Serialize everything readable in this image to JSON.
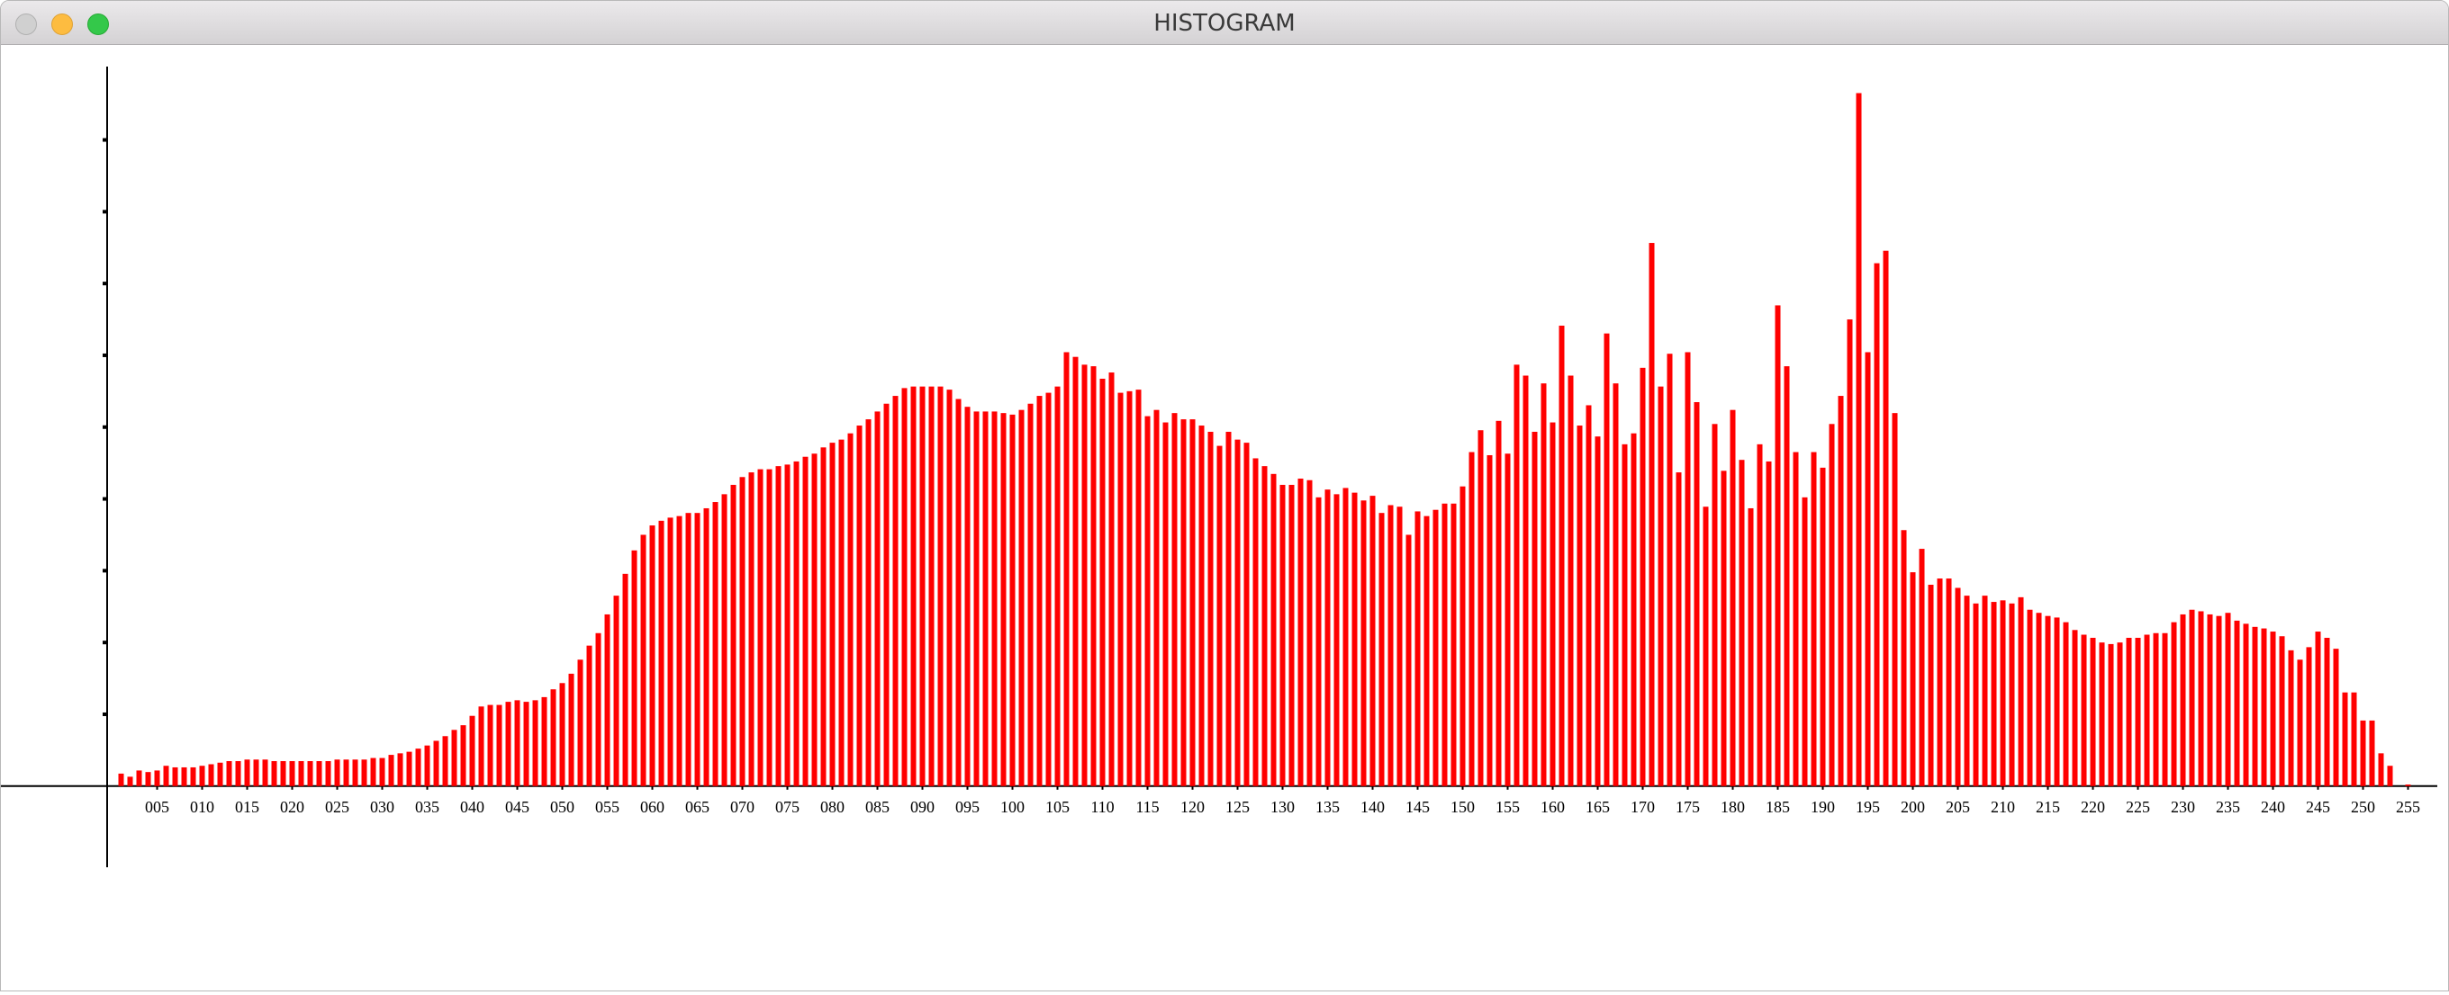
{
  "window": {
    "title": "HISTOGRAM"
  },
  "chart_data": {
    "type": "bar",
    "color": "#ff0000",
    "categories": [
      null,
      null,
      null,
      null,
      null,
      "005",
      null,
      null,
      null,
      null,
      "010",
      null,
      null,
      null,
      null,
      "015",
      null,
      null,
      null,
      null,
      "020",
      null,
      null,
      null,
      null,
      "025",
      null,
      null,
      null,
      null,
      "030",
      null,
      null,
      null,
      null,
      "035",
      null,
      null,
      null,
      null,
      "040",
      null,
      null,
      null,
      null,
      "045",
      null,
      null,
      null,
      null,
      "050",
      null,
      null,
      null,
      null,
      "055",
      null,
      null,
      null,
      null,
      "060",
      null,
      null,
      null,
      null,
      "065",
      null,
      null,
      null,
      null,
      "070",
      null,
      null,
      null,
      null,
      "075",
      null,
      null,
      null,
      null,
      "080",
      null,
      null,
      null,
      null,
      "085",
      null,
      null,
      null,
      null,
      "090",
      null,
      null,
      null,
      null,
      "095",
      null,
      null,
      null,
      null,
      "100",
      null,
      null,
      null,
      null,
      "105",
      null,
      null,
      null,
      null,
      "110",
      null,
      null,
      null,
      null,
      "115",
      null,
      null,
      null,
      null,
      "120",
      null,
      null,
      null,
      null,
      "125",
      null,
      null,
      null,
      null,
      "130",
      null,
      null,
      null,
      null,
      "135",
      null,
      null,
      null,
      null,
      "140",
      null,
      null,
      null,
      null,
      "145",
      null,
      null,
      null,
      null,
      "150",
      null,
      null,
      null,
      null,
      "155",
      null,
      null,
      null,
      null,
      "160",
      null,
      null,
      null,
      null,
      "165",
      null,
      null,
      null,
      null,
      "170",
      null,
      null,
      null,
      null,
      "175",
      null,
      null,
      null,
      null,
      "180",
      null,
      null,
      null,
      null,
      "185",
      null,
      null,
      null,
      null,
      "190",
      null,
      null,
      null,
      null,
      "195",
      null,
      null,
      null,
      null,
      "200",
      null,
      null,
      null,
      null,
      "205",
      null,
      null,
      null,
      null,
      "210",
      null,
      null,
      null,
      null,
      "215",
      null,
      null,
      null,
      null,
      "220",
      null,
      null,
      null,
      null,
      "225",
      null,
      null,
      null,
      null,
      "230",
      null,
      null,
      null,
      null,
      "235",
      null,
      null,
      null,
      null,
      "240",
      null,
      null,
      null,
      null,
      "245",
      null,
      null,
      null,
      null,
      "250",
      null,
      null,
      null,
      null,
      "255"
    ],
    "values": [
      0,
      8,
      6,
      10,
      9,
      10,
      13,
      12,
      12,
      12,
      13,
      14,
      15,
      16,
      16,
      17,
      17,
      17,
      16,
      16,
      16,
      16,
      16,
      16,
      16,
      17,
      17,
      17,
      17,
      18,
      18,
      20,
      21,
      22,
      24,
      26,
      29,
      32,
      36,
      39,
      45,
      51,
      52,
      52,
      54,
      55,
      54,
      55,
      57,
      62,
      66,
      72,
      81,
      90,
      98,
      110,
      122,
      136,
      151,
      161,
      167,
      170,
      172,
      173,
      175,
      175,
      178,
      182,
      187,
      193,
      198,
      201,
      203,
      203,
      205,
      206,
      208,
      211,
      213,
      217,
      220,
      222,
      226,
      231,
      235,
      240,
      245,
      250,
      255,
      256,
      256,
      256,
      256,
      254,
      248,
      243,
      240,
      240,
      240,
      239,
      238,
      241,
      245,
      250,
      252,
      256,
      278,
      275,
      270,
      269,
      261,
      265,
      252,
      253,
      254,
      237,
      241,
      233,
      239,
      235,
      235,
      231,
      227,
      218,
      227,
      222,
      220,
      210,
      205,
      200,
      193,
      193,
      197,
      196,
      185,
      190,
      187,
      191,
      188,
      183,
      186,
      175,
      180,
      179,
      161,
      176,
      173,
      177,
      181,
      181,
      192,
      214,
      228,
      212,
      234,
      213,
      270,
      263,
      227,
      258,
      233,
      295,
      263,
      231,
      244,
      224,
      290,
      258,
      219,
      226,
      268,
      348,
      256,
      277,
      201,
      278,
      246,
      179,
      232,
      202,
      241,
      209,
      178,
      219,
      208,
      308,
      269,
      214,
      185,
      214,
      204,
      232,
      250,
      299,
      444,
      278,
      335,
      343,
      239,
      164,
      137,
      152,
      129,
      133,
      133,
      127,
      122,
      117,
      122,
      118,
      119,
      117,
      121,
      113,
      111,
      109,
      108,
      105,
      100,
      97,
      95,
      92,
      91,
      92,
      95,
      95,
      97,
      98,
      98,
      105,
      110,
      113,
      112,
      110,
      109,
      111,
      106,
      104,
      102,
      101,
      99,
      96,
      87,
      81,
      89,
      99,
      95,
      88,
      60,
      60,
      42,
      42,
      21,
      13,
      0,
      1
    ],
    "ylim": [
      -52,
      461
    ],
    "yticks": [
      46,
      92,
      138,
      184,
      230,
      276,
      322,
      368,
      414
    ]
  }
}
